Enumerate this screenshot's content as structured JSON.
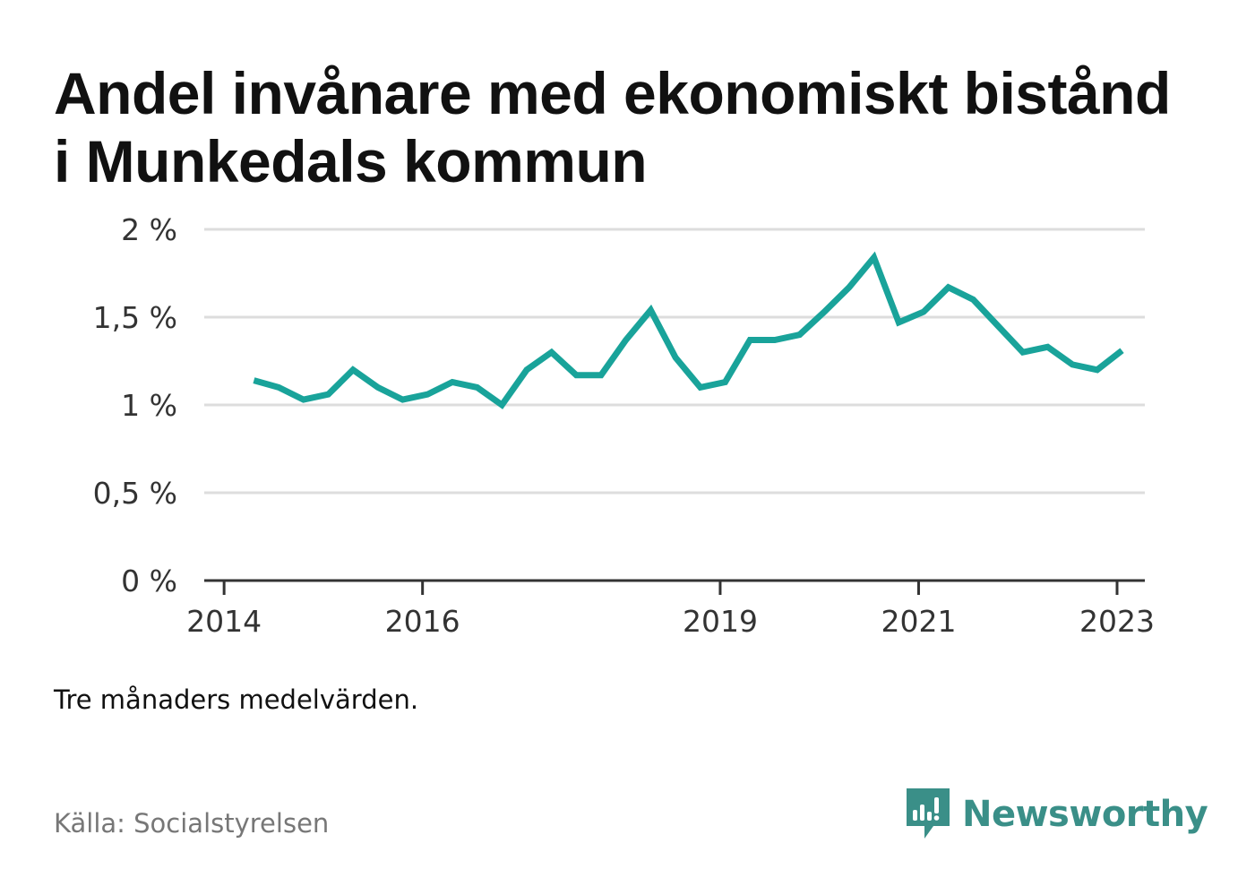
{
  "title": "Andel invånare med ekonomiskt bistånd i Munkedals kommun",
  "note": "Tre månaders medelvärden.",
  "source": "Källa: Socialstyrelsen",
  "brand": {
    "name": "Newsworthy",
    "logo_icon": "bar-chart-speech-bubble-icon",
    "color": "#3a8f88"
  },
  "colors": {
    "line": "#19a39a",
    "grid": "#dddddd",
    "axis": "#333333"
  },
  "chart_data": {
    "type": "line",
    "xlabel": "",
    "ylabel": "",
    "ylim": [
      0,
      2
    ],
    "y_ticks": [
      {
        "value": 0,
        "label": "0 %"
      },
      {
        "value": 0.5,
        "label": "0,5 %"
      },
      {
        "value": 1,
        "label": "1 %"
      },
      {
        "value": 1.5,
        "label": "1,5 %"
      },
      {
        "value": 2,
        "label": "2 %"
      }
    ],
    "x_ticks": [
      {
        "value": 2014,
        "label": "2014"
      },
      {
        "value": 2016,
        "label": "2016"
      },
      {
        "value": 2019,
        "label": "2019"
      },
      {
        "value": 2021,
        "label": "2021"
      },
      {
        "value": 2023,
        "label": "2023"
      }
    ],
    "grid": true,
    "legend": "none",
    "series": [
      {
        "x": [
          2014.3,
          2014.55,
          2014.8,
          2015.05,
          2015.3,
          2015.55,
          2015.8,
          2016.05,
          2016.3,
          2016.55,
          2016.8,
          2017.05,
          2017.3,
          2017.55,
          2017.8,
          2018.05,
          2018.3,
          2018.55,
          2018.8,
          2019.05,
          2019.3,
          2019.55,
          2019.8,
          2020.05,
          2020.3,
          2020.55,
          2020.8,
          2021.05,
          2021.3,
          2021.55,
          2021.8,
          2022.05,
          2022.3,
          2022.55,
          2022.8,
          2023.05
        ],
        "values": [
          1.14,
          1.1,
          1.03,
          1.06,
          1.2,
          1.1,
          1.03,
          1.06,
          1.13,
          1.1,
          1.0,
          1.2,
          1.3,
          1.17,
          1.17,
          1.37,
          1.54,
          1.27,
          1.1,
          1.13,
          1.37,
          1.37,
          1.4,
          1.53,
          1.67,
          1.84,
          1.47,
          1.53,
          1.67,
          1.6,
          1.45,
          1.3,
          1.33,
          1.23,
          1.2,
          1.31
        ]
      }
    ]
  }
}
